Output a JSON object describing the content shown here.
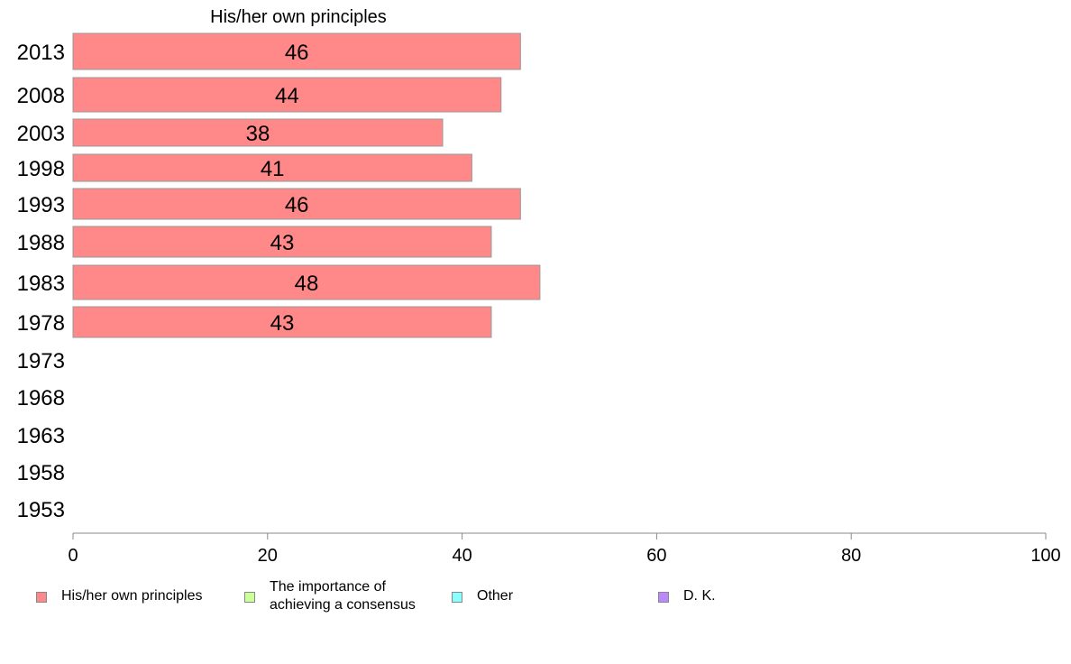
{
  "chart_data": {
    "type": "bar",
    "orientation": "horizontal",
    "title": "His/her own principles",
    "categories": [
      "2013",
      "2008",
      "2003",
      "1998",
      "1993",
      "1988",
      "1983",
      "1978",
      "1973",
      "1968",
      "1963",
      "1958",
      "1953"
    ],
    "series": [
      {
        "name": "His/her own principles",
        "color": "#ff8888",
        "values": [
          46,
          44,
          38,
          41,
          46,
          43,
          48,
          43,
          null,
          null,
          null,
          null,
          null
        ],
        "data_labels": [
          "46",
          "44",
          "38",
          "41",
          "46",
          "43",
          "48",
          "43",
          "",
          "",
          "",
          "",
          ""
        ]
      }
    ],
    "xlim": [
      0,
      100
    ],
    "x_ticks": [
      "0",
      "20",
      "40",
      "60",
      "80",
      "100"
    ],
    "grid": false,
    "legend_position": "bottom",
    "legend": [
      {
        "label": "His/her own principles",
        "color": "#ff8888"
      },
      {
        "label": "The importance of achieving a consensus",
        "label_lines": [
          "The importance of",
          "achieving a consensus"
        ],
        "color": "#ccff99"
      },
      {
        "label": "Other",
        "color": "#88ffff"
      },
      {
        "label": "D. K.",
        "color": "#bb88ff"
      }
    ]
  }
}
